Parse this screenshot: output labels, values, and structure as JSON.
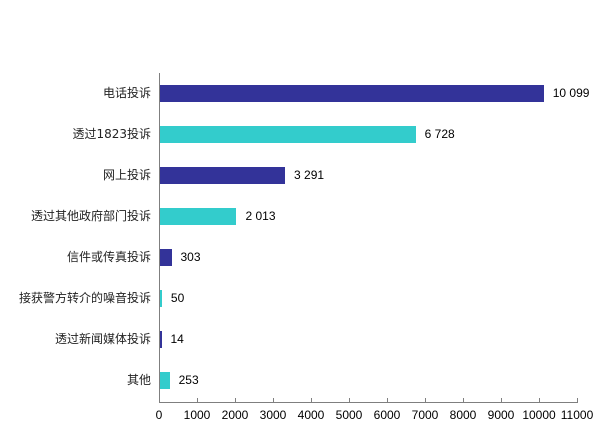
{
  "chart_data": {
    "type": "bar",
    "orientation": "horizontal",
    "title": "",
    "xlabel": "",
    "ylabel": "",
    "xlim": [
      0,
      11000
    ],
    "grid": false,
    "legend": null,
    "categories": [
      "电话投诉",
      "透过1823投诉",
      "网上投诉",
      "透过其他政府部门投诉",
      "信件或传真投诉",
      "接获警方转介的噪音投诉",
      "透过新闻媒体投诉",
      "其他"
    ],
    "values": [
      10099,
      6728,
      3291,
      2013,
      303,
      50,
      14,
      253
    ],
    "value_labels": [
      "10 099",
      "6 728",
      "3 291",
      "2 013",
      "303",
      "50",
      "14",
      "253"
    ],
    "bar_colors": [
      "#333399",
      "#33CCCC",
      "#333399",
      "#33CCCC",
      "#333399",
      "#33CCCC",
      "#333399",
      "#33CCCC"
    ],
    "x_ticks": [
      0,
      1000,
      2000,
      3000,
      4000,
      5000,
      6000,
      7000,
      8000,
      9000,
      10000,
      11000
    ],
    "x_tick_labels": [
      "0",
      "1000",
      "2000",
      "3000",
      "4000",
      "5000",
      "6000",
      "7000",
      "8000",
      "9000",
      "10000",
      "11000"
    ]
  }
}
